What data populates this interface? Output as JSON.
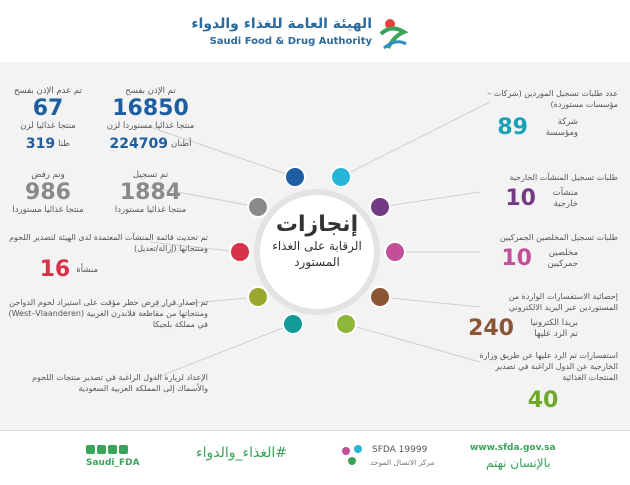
{
  "header": {
    "logo_ar": "الهيئة العامة للغذاء والدواء",
    "logo_en": "Saudi Food & Drug Authority"
  },
  "center": {
    "lines": [
      "إنجازات",
      "الرقابة على الغذاء",
      "المستورد"
    ]
  },
  "right_items": [
    {
      "label": "عدد طلبات تسجيل الموردين (شركات –مؤسسات مستوردة)",
      "value": 89,
      "unit": "شركة ومؤسسة"
    },
    {
      "label": "طلبات تسجيل المنشآت الخارجية",
      "value": 10,
      "unit": "منشآت خارجية"
    },
    {
      "label": "طلبات تسجيل المخلصين الجمركيين",
      "value": 10,
      "unit": "مخلصين جمركيين"
    },
    {
      "label": "إحصائية الاستفسارات الواردة من المستوردين عبر البريد الالكتروني",
      "value": 240,
      "unit": "بريدا الكترونيا تم الرد عليها"
    },
    {
      "label": "استفسارات تم الرد عليها عن طريق وزارة الخارجية عن الدول الراغبة في تصدير المنتجات الغذائية",
      "value": 40
    }
  ],
  "left_items": [
    {
      "stats": [
        {
          "label": "تم الإذن بفسح",
          "value": 16850,
          "unit": "منتجا غذائيا مستوردا لزن",
          "value2": 224709,
          "unit2": "أطنان"
        },
        {
          "label": "تم عدم الإذن بفسح",
          "value": 67,
          "unit": "منتجا غذائيا لزن",
          "value2": 319,
          "unit2": "طنا"
        }
      ]
    },
    {
      "stats": [
        {
          "label": "تم تسجيل",
          "value": 1884,
          "unit": "منتجا غذائيا مستوردا"
        },
        {
          "label": "وتم رفض",
          "value": 986,
          "unit": "منتجا غذائيا مستوردا"
        }
      ]
    },
    {
      "label": "تم تحديث قائمة المنشآت المعتمدة لدى الهيئة لتصدير اللحوم ومنتجاتها (إزالة/تعديل)",
      "value": 16,
      "unit": "منشأة"
    },
    {
      "label": "تم إصدار قرار فرض حظر مؤقت على استيراد لحوم الدواجن ومنتجاتها من مقاطعة فلاندرن الغربية (West–Vlaanderen) في مملكة بلجيكا"
    },
    {
      "label": "الإعداد لزيارة الدول الراغبة في تصدير منتجات اللحوم والأسماك إلى المملكة العربية السعودية"
    }
  ],
  "footer": {
    "social": "Saudi_FDA",
    "hashtag": "#الغذاء_والدواء",
    "callcenter": "SFDA 19999",
    "callcenter_label": "مركز الاتصال الموحد",
    "website": "www.sfda.gov.sa",
    "slogan": "بالإنسان نهتم"
  }
}
